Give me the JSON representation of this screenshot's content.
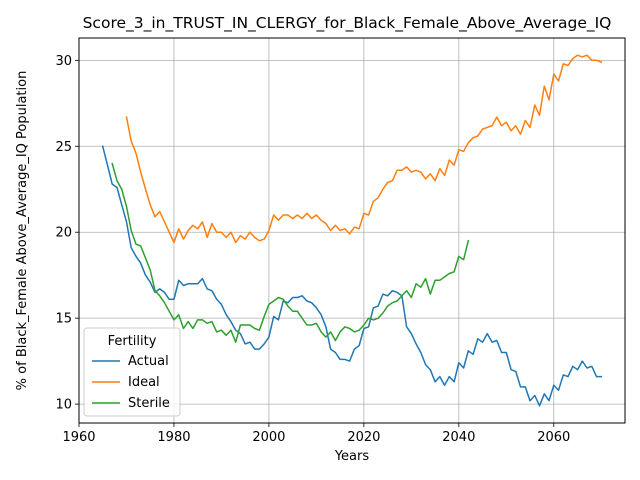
{
  "chart_data": {
    "type": "line",
    "title": "Score_3_in_TRUST_IN_CLERGY_for_Black_Female_Above_Average_IQ",
    "xlabel": "Years",
    "ylabel": "% of Black_Female Above_Average_IQ Population",
    "xlim": [
      1960,
      2075
    ],
    "ylim": [
      8.9,
      31.3
    ],
    "xticks": [
      1960,
      1980,
      2000,
      2020,
      2040,
      2060
    ],
    "yticks": [
      10,
      15,
      20,
      25,
      30
    ],
    "grid": true,
    "legend": {
      "title": "Fertility",
      "placement": "bottom-left"
    },
    "series": [
      {
        "name": "Actual",
        "color": "#1f77b4",
        "x": [
          1965,
          1966,
          1967,
          1968,
          1969,
          1970,
          1971,
          1972,
          1973,
          1974,
          1975,
          1976,
          1977,
          1978,
          1979,
          1980,
          1981,
          1982,
          1983,
          1984,
          1985,
          1986,
          1987,
          1988,
          1989,
          1990,
          1991,
          1992,
          1993,
          1994,
          1995,
          1996,
          1997,
          1998,
          1999,
          2000,
          2001,
          2002,
          2003,
          2004,
          2005,
          2006,
          2007,
          2008,
          2009,
          2010,
          2011,
          2012,
          2013,
          2014,
          2015,
          2016,
          2017,
          2018,
          2019,
          2020,
          2021,
          2022,
          2023,
          2024,
          2025,
          2026,
          2027,
          2028,
          2029,
          2030,
          2031,
          2032,
          2033,
          2034,
          2035,
          2036,
          2037,
          2038,
          2039,
          2040,
          2041,
          2042,
          2043,
          2044,
          2045,
          2046,
          2047,
          2048,
          2049,
          2050,
          2051,
          2052,
          2053,
          2054,
          2055,
          2056,
          2057,
          2058,
          2059,
          2060,
          2061,
          2062,
          2063,
          2064,
          2065,
          2066,
          2067,
          2068,
          2069,
          2070
        ],
        "values": [
          25.0,
          23.9,
          22.8,
          22.6,
          21.6,
          20.6,
          19.1,
          18.6,
          18.2,
          17.5,
          17.1,
          16.5,
          16.7,
          16.5,
          16.1,
          16.1,
          17.2,
          16.9,
          17.0,
          17.0,
          17.0,
          17.3,
          16.7,
          16.6,
          16.1,
          15.8,
          15.2,
          14.8,
          14.3,
          14.1,
          13.5,
          13.6,
          13.2,
          13.2,
          13.5,
          13.9,
          15.1,
          14.9,
          16.0,
          15.9,
          16.2,
          16.2,
          16.3,
          16.0,
          15.9,
          15.6,
          15.2,
          14.5,
          13.2,
          13.0,
          12.6,
          12.6,
          12.5,
          13.2,
          13.4,
          14.4,
          14.5,
          15.6,
          15.7,
          16.4,
          16.3,
          16.6,
          16.5,
          16.3,
          14.5,
          14.1,
          13.5,
          13.0,
          12.3,
          12.0,
          11.3,
          11.6,
          11.1,
          11.6,
          11.3,
          12.4,
          12.1,
          13.1,
          12.9,
          13.8,
          13.6,
          14.1,
          13.6,
          13.7,
          13.0,
          13.0,
          12.0,
          11.9,
          11.0,
          11.0,
          10.2,
          10.5,
          9.9,
          10.6,
          10.2,
          11.1,
          10.8,
          11.7,
          11.6,
          12.2,
          12.0,
          12.5,
          12.1,
          12.2,
          11.6,
          11.6
        ]
      },
      {
        "name": "Ideal",
        "color": "#ff7f0e",
        "x": [
          1970,
          1971,
          1972,
          1973,
          1974,
          1975,
          1976,
          1977,
          1978,
          1979,
          1980,
          1981,
          1982,
          1983,
          1984,
          1985,
          1986,
          1987,
          1988,
          1989,
          1990,
          1991,
          1992,
          1993,
          1994,
          1995,
          1996,
          1997,
          1998,
          1999,
          2000,
          2001,
          2002,
          2003,
          2004,
          2005,
          2006,
          2007,
          2008,
          2009,
          2010,
          2011,
          2012,
          2013,
          2014,
          2015,
          2016,
          2017,
          2018,
          2019,
          2020,
          2021,
          2022,
          2023,
          2024,
          2025,
          2026,
          2027,
          2028,
          2029,
          2030,
          2031,
          2032,
          2033,
          2034,
          2035,
          2036,
          2037,
          2038,
          2039,
          2040,
          2041,
          2042,
          2043,
          2044,
          2045,
          2046,
          2047,
          2048,
          2049,
          2050,
          2051,
          2052,
          2053,
          2054,
          2055,
          2056,
          2057,
          2058,
          2059,
          2060,
          2061,
          2062,
          2063,
          2064,
          2065,
          2066,
          2067,
          2068,
          2069,
          2070
        ],
        "values": [
          26.7,
          25.3,
          24.6,
          23.5,
          22.5,
          21.6,
          20.9,
          21.2,
          20.6,
          20.0,
          19.4,
          20.2,
          19.6,
          20.1,
          20.4,
          20.2,
          20.6,
          19.7,
          20.5,
          20.0,
          20.0,
          19.7,
          20.0,
          19.4,
          19.8,
          19.6,
          20.0,
          19.7,
          19.5,
          19.6,
          20.1,
          21.0,
          20.7,
          21.0,
          21.0,
          20.8,
          21.0,
          20.8,
          21.1,
          20.8,
          21.0,
          20.7,
          20.5,
          20.1,
          20.4,
          20.1,
          20.2,
          19.9,
          20.3,
          20.2,
          21.1,
          21.0,
          21.8,
          22.0,
          22.5,
          22.9,
          23.0,
          23.6,
          23.6,
          23.8,
          23.5,
          23.6,
          23.5,
          23.1,
          23.4,
          23.0,
          23.7,
          23.3,
          24.2,
          23.9,
          24.8,
          24.7,
          25.2,
          25.5,
          25.6,
          26.0,
          26.1,
          26.2,
          26.7,
          26.2,
          26.4,
          25.9,
          26.2,
          25.7,
          26.5,
          26.1,
          27.4,
          26.8,
          28.5,
          27.7,
          29.2,
          28.8,
          29.8,
          29.7,
          30.1,
          30.3,
          30.2,
          30.3,
          30.0,
          30.0,
          29.9
        ]
      },
      {
        "name": "Sterile",
        "color": "#2ca02c",
        "x": [
          1967,
          1968,
          1969,
          1970,
          1971,
          1972,
          1973,
          1974,
          1975,
          1976,
          1977,
          1978,
          1979,
          1980,
          1981,
          1982,
          1983,
          1984,
          1985,
          1986,
          1987,
          1988,
          1989,
          1990,
          1991,
          1992,
          1993,
          1994,
          1995,
          1996,
          1997,
          1998,
          1999,
          2000,
          2001,
          2002,
          2003,
          2004,
          2005,
          2006,
          2007,
          2008,
          2009,
          2010,
          2011,
          2012,
          2013,
          2014,
          2015,
          2016,
          2017,
          2018,
          2019,
          2020,
          2021,
          2022,
          2023,
          2024,
          2025,
          2026,
          2027,
          2028,
          2029,
          2030,
          2031,
          2032,
          2033,
          2034,
          2035,
          2036,
          2037,
          2038,
          2039,
          2040,
          2041,
          2042
        ],
        "values": [
          24.0,
          23.0,
          22.5,
          21.5,
          20.1,
          19.3,
          19.2,
          18.5,
          17.8,
          16.6,
          16.3,
          15.9,
          15.4,
          14.9,
          15.2,
          14.4,
          14.8,
          14.4,
          14.9,
          14.9,
          14.7,
          14.8,
          14.2,
          14.3,
          14.0,
          14.3,
          13.6,
          14.6,
          14.6,
          14.6,
          14.4,
          14.3,
          15.1,
          15.8,
          16.0,
          16.2,
          16.1,
          15.7,
          15.4,
          15.4,
          15.0,
          14.6,
          14.6,
          14.7,
          14.2,
          13.9,
          14.2,
          13.7,
          14.2,
          14.5,
          14.4,
          14.2,
          14.3,
          14.6,
          15.0,
          14.9,
          15.0,
          15.3,
          15.7,
          15.9,
          16.0,
          16.3,
          16.6,
          16.2,
          17.0,
          16.8,
          17.3,
          16.4,
          17.2,
          17.2,
          17.4,
          17.6,
          17.7,
          18.6,
          18.4,
          19.5
        ]
      }
    ]
  }
}
